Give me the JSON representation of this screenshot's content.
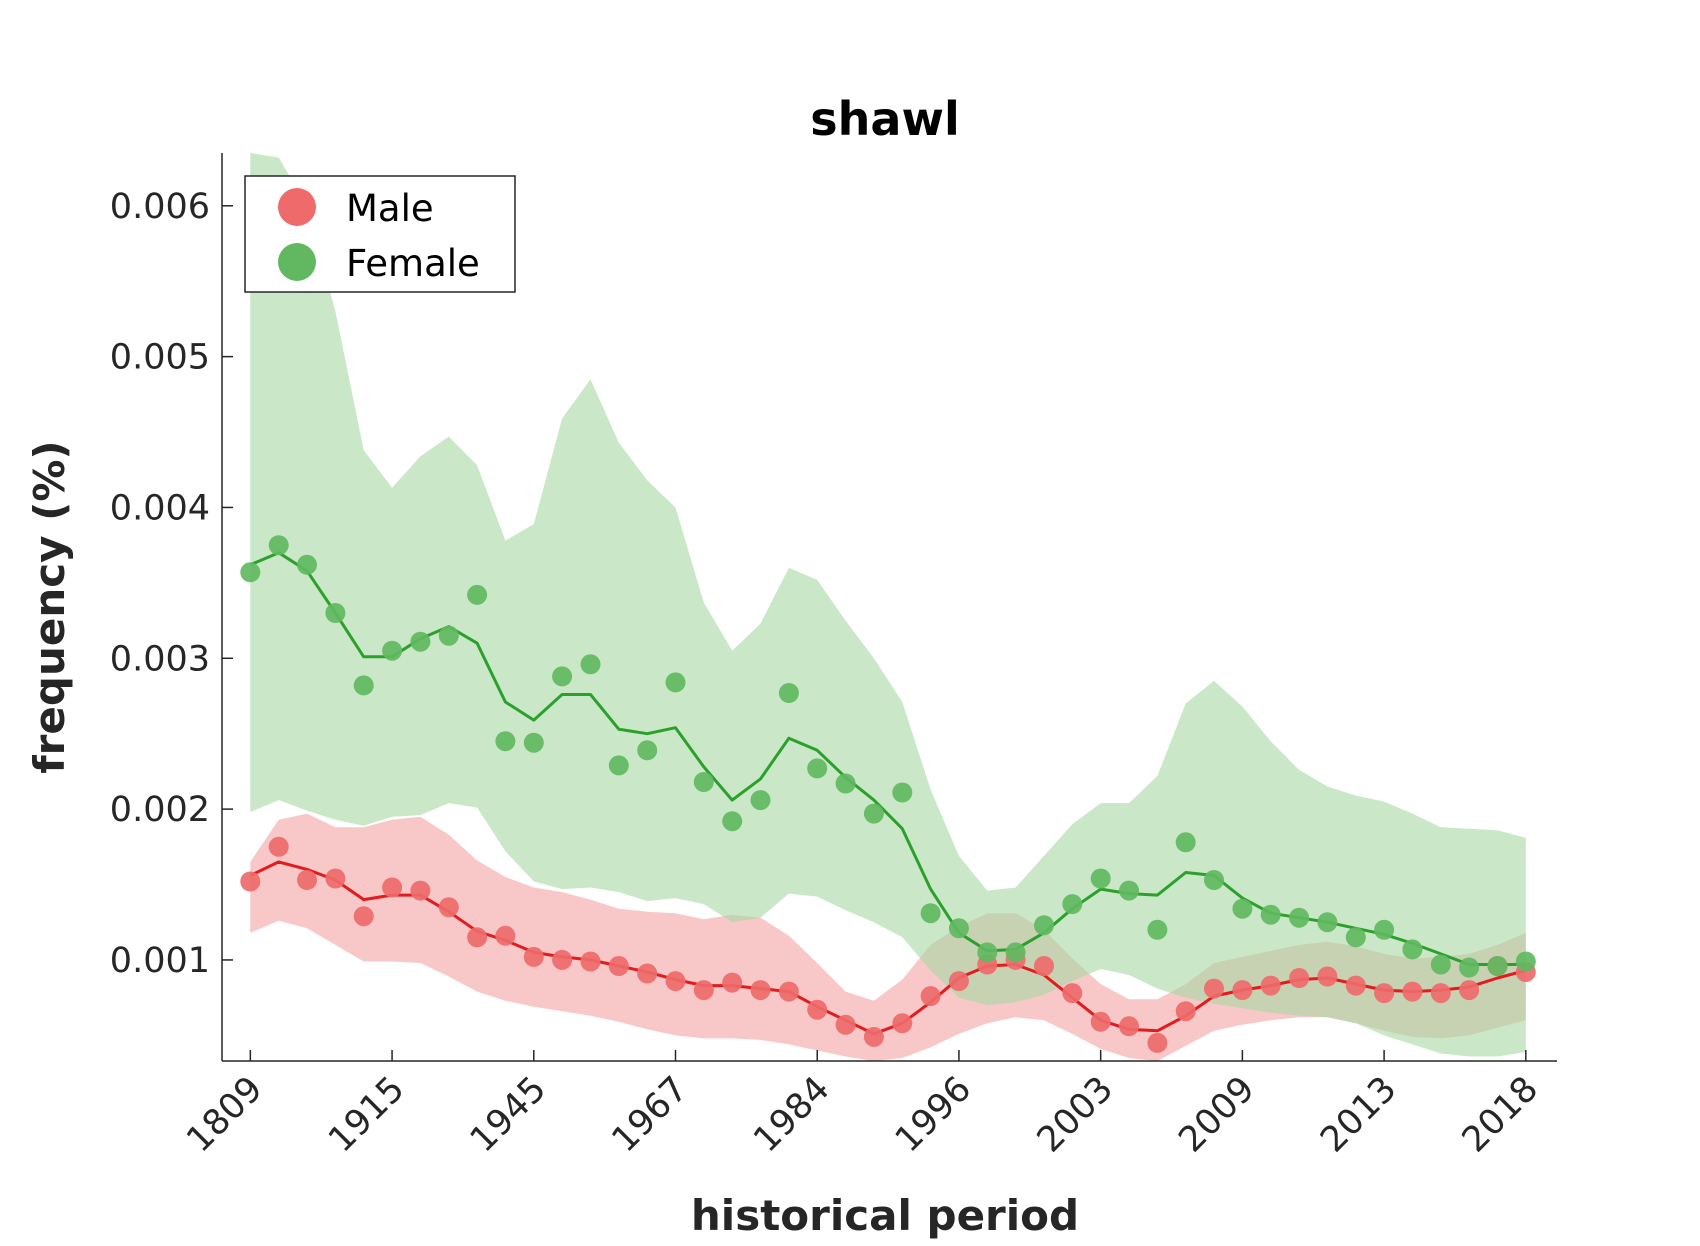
{
  "chart_data": {
    "type": "line",
    "title": "shawl",
    "xlabel": "historical period",
    "ylabel": "frequency (%)",
    "x_tick_labels": [
      "1809",
      "1915",
      "1945",
      "1967",
      "1984",
      "1996",
      "2003",
      "2009",
      "2013",
      "2018"
    ],
    "x_tick_positions": [
      1,
      6,
      11,
      16,
      21,
      26,
      31,
      36,
      41,
      46
    ],
    "xlim": [
      0,
      47.1
    ],
    "ylim": [
      0.00033,
      0.00635
    ],
    "y_ticks": [
      0.001,
      0.002,
      0.003,
      0.004,
      0.005,
      0.006
    ],
    "y_tick_labels": [
      "0.001",
      "0.002",
      "0.003",
      "0.004",
      "0.005",
      "0.006"
    ],
    "legend": {
      "position": "top-left",
      "entries": [
        "Male",
        "Female"
      ]
    },
    "grid": false,
    "series": [
      {
        "name": "Male",
        "color": "#e41a1c",
        "marker_color": "#ee6a6b",
        "band_color": "#f4a3a4",
        "points": [
          0.00152,
          0.00175,
          0.00153,
          0.00154,
          0.00129,
          0.00148,
          0.00146,
          0.00135,
          0.00115,
          0.00116,
          0.00102,
          0.001,
          0.00099,
          0.00096,
          0.00091,
          0.00086,
          0.0008,
          0.00085,
          0.0008,
          0.00079,
          0.00067,
          0.00057,
          0.00049,
          0.00058,
          0.00076,
          0.00086,
          0.00097,
          0.001,
          0.00096,
          0.00078,
          0.00059,
          0.00056,
          0.00045,
          0.00066,
          0.00081,
          0.0008,
          0.00083,
          0.00088,
          0.00089,
          0.00083,
          0.00078,
          0.00079,
          0.00078,
          0.0008,
          0.00096,
          0.00092
        ],
        "line": [
          0.00156,
          0.00165,
          0.0016,
          0.00153,
          0.0014,
          0.00143,
          0.00143,
          0.00132,
          0.00119,
          0.00113,
          0.00105,
          0.00102,
          0.001,
          0.00096,
          0.00092,
          0.00087,
          0.00083,
          0.00083,
          0.00081,
          0.00079,
          0.00069,
          0.0006,
          0.00051,
          0.00058,
          0.00072,
          0.00088,
          0.00096,
          0.00097,
          0.0009,
          0.00075,
          0.0006,
          0.00054,
          0.00053,
          0.00063,
          0.00076,
          0.0008,
          0.00083,
          0.00087,
          0.00088,
          0.00084,
          0.0008,
          0.00079,
          0.0008,
          0.00082,
          0.00088,
          0.00093
        ],
        "band_upper": [
          0.00165,
          0.00193,
          0.00197,
          0.00188,
          0.00188,
          0.00193,
          0.00195,
          0.00183,
          0.00166,
          0.00155,
          0.00148,
          0.00145,
          0.0014,
          0.00134,
          0.00132,
          0.00131,
          0.00127,
          0.0013,
          0.00128,
          0.00116,
          0.00098,
          0.00079,
          0.00073,
          0.00087,
          0.0011,
          0.00122,
          0.00131,
          0.00131,
          0.0012,
          0.00101,
          0.00084,
          0.00074,
          0.00074,
          0.00084,
          0.00098,
          0.00102,
          0.00106,
          0.0011,
          0.00112,
          0.00109,
          0.00104,
          0.00101,
          0.00102,
          0.00104,
          0.0011,
          0.00118
        ],
        "band_lower": [
          0.00118,
          0.00126,
          0.00121,
          0.0011,
          0.00099,
          0.00099,
          0.00098,
          0.00089,
          0.00079,
          0.00073,
          0.00069,
          0.00066,
          0.00063,
          0.00059,
          0.00054,
          0.0005,
          0.00048,
          0.00048,
          0.00047,
          0.00044,
          0.0004,
          0.00036,
          0.00033,
          0.00035,
          0.00042,
          0.00051,
          0.00058,
          0.00062,
          0.0006,
          0.00051,
          0.00041,
          0.00035,
          0.00033,
          0.00043,
          0.00053,
          0.00057,
          0.0006,
          0.00062,
          0.00062,
          0.00058,
          0.00053,
          0.00049,
          0.00048,
          0.0005,
          0.00055,
          0.0006
        ]
      },
      {
        "name": "Female",
        "color": "#2ca02c",
        "marker_color": "#61b861",
        "band_color": "#a7d8a3",
        "points": [
          0.00357,
          0.00375,
          0.00362,
          0.0033,
          0.00282,
          0.00305,
          0.00311,
          0.00315,
          0.00342,
          0.00245,
          0.00244,
          0.00288,
          0.00296,
          0.00229,
          0.00239,
          0.00284,
          0.00218,
          0.00192,
          0.00206,
          0.00277,
          0.00227,
          0.00217,
          0.00197,
          0.00211,
          0.00131,
          0.00121,
          0.00105,
          0.00105,
          0.00123,
          0.00137,
          0.00154,
          0.00146,
          0.0012,
          0.00178,
          0.00153,
          0.00134,
          0.0013,
          0.00128,
          0.00125,
          0.00115,
          0.0012,
          0.00107,
          0.00097,
          0.00095,
          0.00096,
          0.00099
        ],
        "line": [
          0.00362,
          0.0037,
          0.00358,
          0.0033,
          0.00301,
          0.00301,
          0.00313,
          0.00321,
          0.0031,
          0.00271,
          0.00259,
          0.00276,
          0.00276,
          0.00253,
          0.0025,
          0.00254,
          0.00228,
          0.00206,
          0.0022,
          0.00247,
          0.00239,
          0.00221,
          0.00206,
          0.00187,
          0.00147,
          0.00118,
          0.00106,
          0.00107,
          0.00118,
          0.00134,
          0.00147,
          0.00144,
          0.00143,
          0.00158,
          0.00156,
          0.00141,
          0.00131,
          0.00128,
          0.00125,
          0.00121,
          0.00117,
          0.00111,
          0.00104,
          0.00097,
          0.00097,
          0.00097
        ],
        "band_upper": [
          0.00635,
          0.00632,
          0.006,
          0.0053,
          0.00438,
          0.00413,
          0.00434,
          0.00447,
          0.00428,
          0.00378,
          0.00389,
          0.00459,
          0.00485,
          0.00443,
          0.00418,
          0.004,
          0.00337,
          0.00305,
          0.00323,
          0.0036,
          0.00352,
          0.00325,
          0.003,
          0.00271,
          0.00213,
          0.00169,
          0.00146,
          0.00148,
          0.00169,
          0.0019,
          0.00204,
          0.00204,
          0.00222,
          0.0027,
          0.00285,
          0.00268,
          0.00245,
          0.00226,
          0.00215,
          0.00209,
          0.00205,
          0.00197,
          0.00188,
          0.00187,
          0.00186,
          0.00181
        ],
        "band_lower": [
          0.00198,
          0.00206,
          0.00199,
          0.00193,
          0.00189,
          0.00195,
          0.00196,
          0.00204,
          0.00201,
          0.00172,
          0.00152,
          0.00147,
          0.00148,
          0.00145,
          0.00139,
          0.00141,
          0.00137,
          0.00125,
          0.00128,
          0.00144,
          0.00142,
          0.00133,
          0.00125,
          0.00115,
          0.00093,
          0.00075,
          0.0007,
          0.00072,
          0.00077,
          0.00086,
          0.00094,
          0.0009,
          0.00081,
          0.00075,
          0.00071,
          0.00068,
          0.00065,
          0.00063,
          0.00062,
          0.00058,
          0.0005,
          0.00044,
          0.00038,
          0.00036,
          0.00036,
          0.00039
        ]
      }
    ]
  }
}
